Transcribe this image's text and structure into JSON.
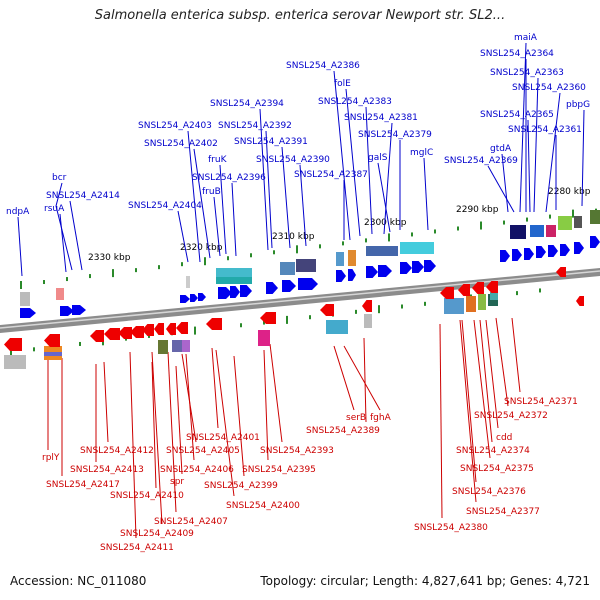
{
  "title": "Salmonella enterica subsp. enterica serovar Newport str. SL2...",
  "footer": {
    "accession": "Accession: NC_011080",
    "topology": "Topology: circular; Length: 4,827,641 bp; Genes: 4,721"
  },
  "colors": {
    "forward_label": "#0000cc",
    "reverse_label": "#cc0000",
    "forward_gene": "#0000ee",
    "reverse_gene": "#ee0000",
    "tick": "#2a8a2a",
    "backbone": "#888888"
  },
  "scale_labels": [
    "2330 kbp",
    "2320 kbp",
    "2310 kbp",
    "2300 kbp",
    "2290 kbp",
    "2280 kbp"
  ],
  "forward_labels": [
    "ndpA",
    "rsuA",
    "bcr",
    "SNSL254_A2414",
    "SNSL254_A2404",
    "SNSL254_A2403",
    "SNSL254_A2402",
    "fruK",
    "fruB",
    "SNSL254_A2396",
    "SNSL254_A2394",
    "SNSL254_A2392",
    "SNSL254_A2391",
    "SNSL254_A2390",
    "SNSL254_A2387",
    "SNSL254_A2386",
    "folE",
    "SNSL254_A2383",
    "SNSL254_A2381",
    "SNSL254_A2379",
    "galS",
    "mglC",
    "gtdA",
    "SNSL254_A2369",
    "SNSL254_A2365",
    "maiA",
    "SNSL254_A2364",
    "SNSL254_A2363",
    "SNSL254_A2360",
    "SNSL254_A2361",
    "pbpG"
  ],
  "reverse_labels": [
    "rplY",
    "SNSL254_A2417",
    "SNSL254_A2413",
    "SNSL254_A2412",
    "SNSL254_A2411",
    "SNSL254_A2410",
    "SNSL254_A2409",
    "SNSL254_A2407",
    "spr",
    "SNSL254_A2406",
    "SNSL254_A2405",
    "SNSL254_A2401",
    "SNSL254_A2400",
    "SNSL254_A2399",
    "SNSL254_A2395",
    "SNSL254_A2393",
    "serB",
    "fghA",
    "SNSL254_A2389",
    "SNSL254_A2380",
    "SNSL254_A2377",
    "SNSL254_A2376",
    "SNSL254_A2375",
    "SNSL254_A2374",
    "cdd",
    "SNSL254_A2372",
    "SNSL254_A2371"
  ]
}
